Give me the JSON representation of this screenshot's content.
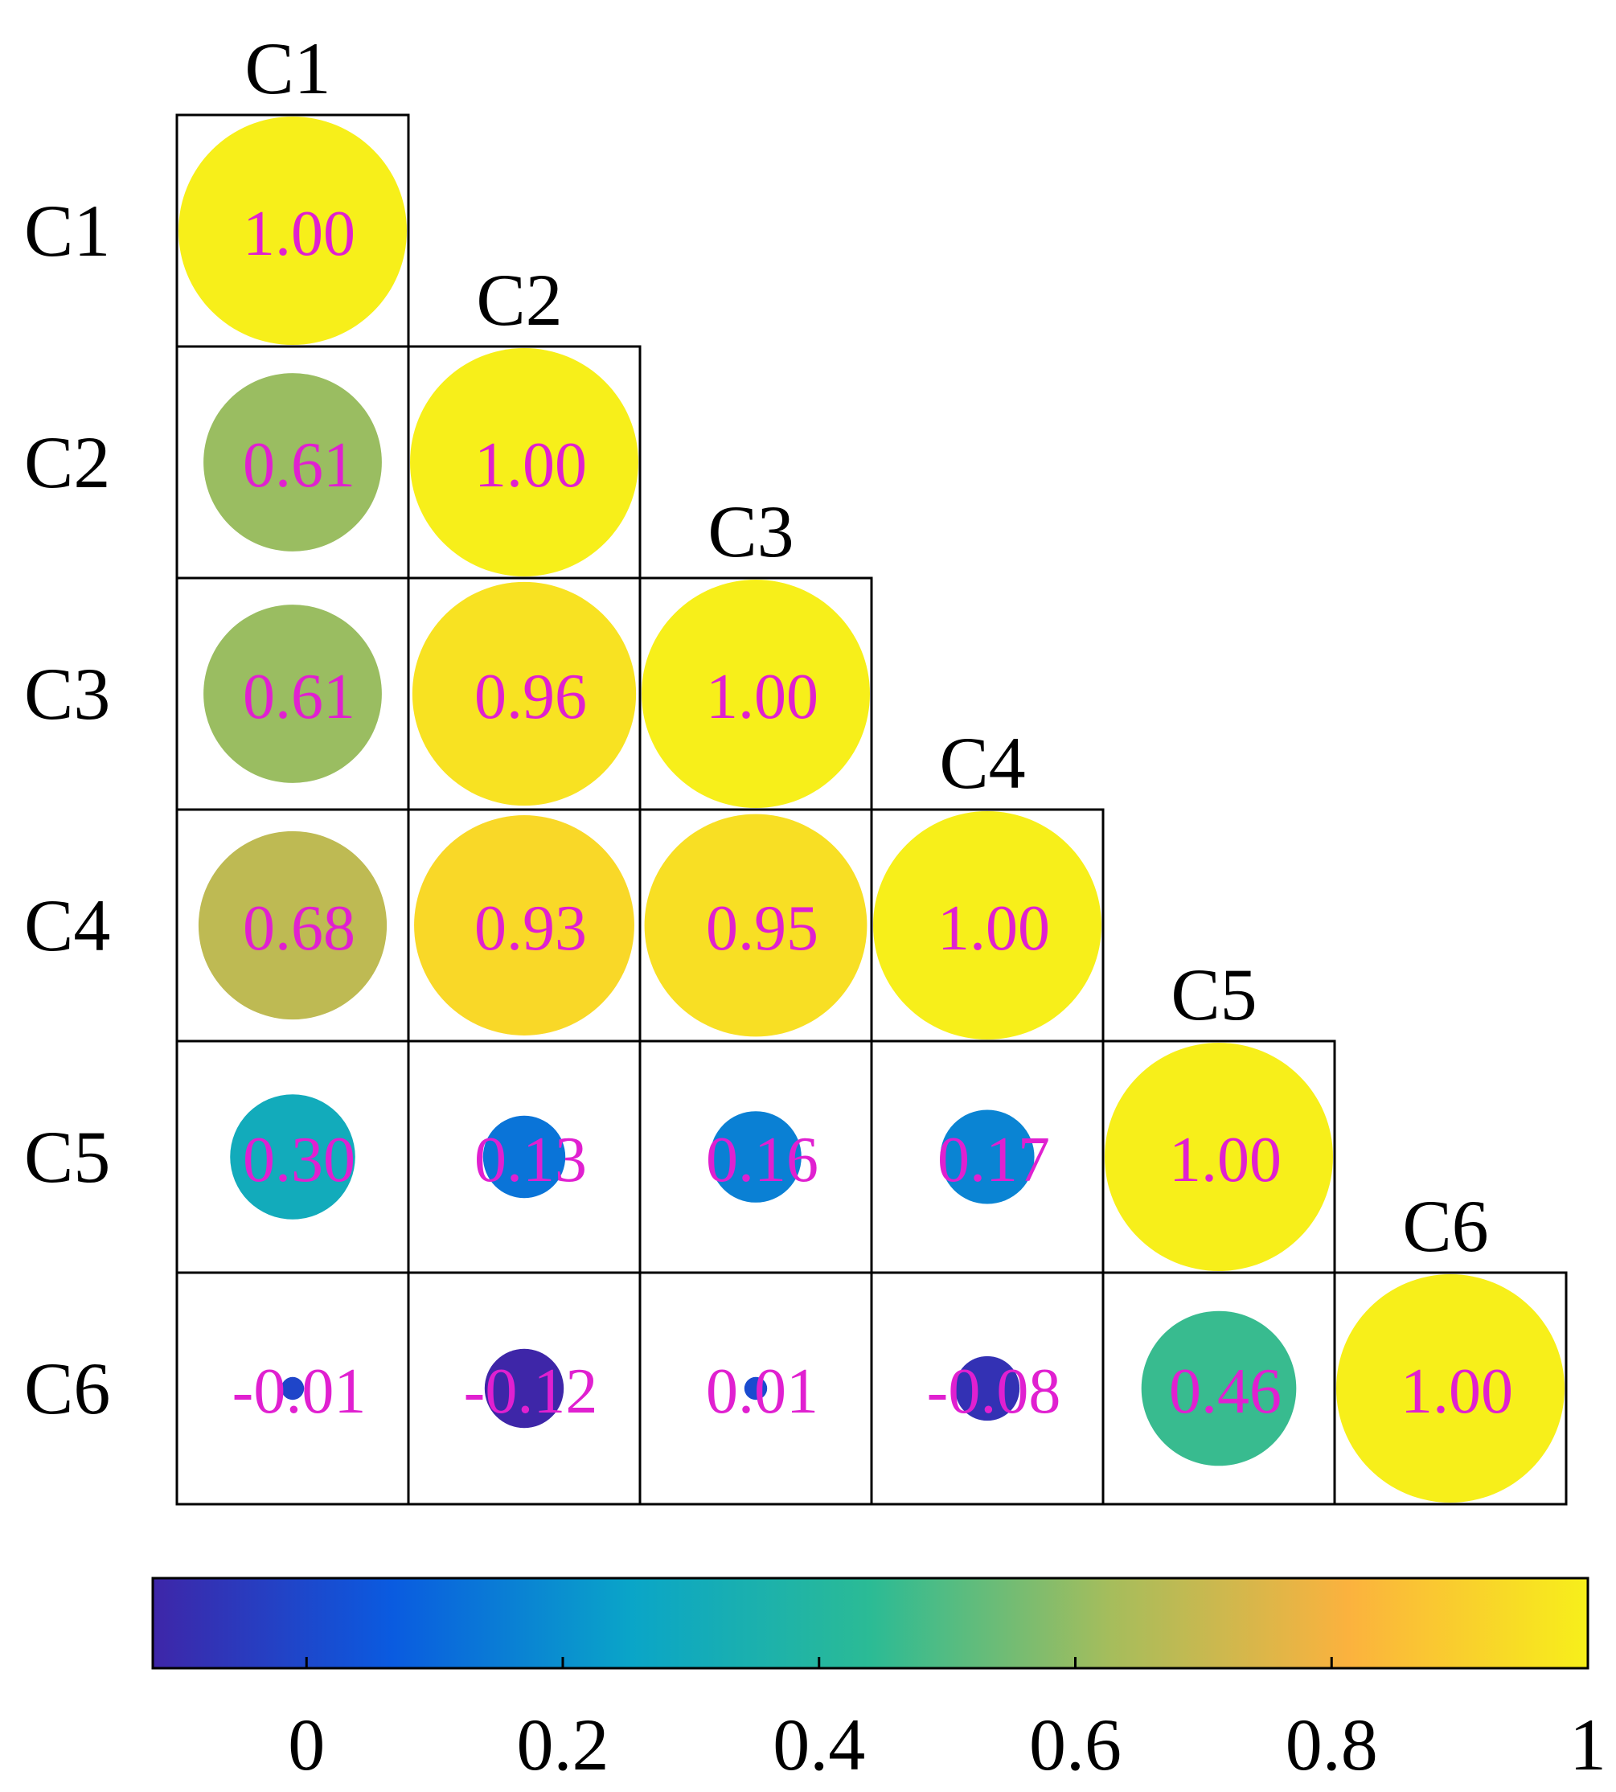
{
  "chart_data": {
    "type": "heatmap",
    "labels": [
      "C1",
      "C2",
      "C3",
      "C4",
      "C5",
      "C6"
    ],
    "matrix": [
      [
        1.0
      ],
      [
        0.61,
        1.0
      ],
      [
        0.61,
        0.96,
        1.0
      ],
      [
        0.68,
        0.93,
        0.95,
        1.0
      ],
      [
        0.3,
        0.13,
        0.16,
        0.17,
        1.0
      ],
      [
        -0.01,
        -0.12,
        0.01,
        -0.08,
        0.46,
        1.0
      ]
    ],
    "value_labels": [
      [
        "1.00"
      ],
      [
        "0.61",
        "1.00"
      ],
      [
        "0.61",
        "0.96",
        "1.00"
      ],
      [
        "0.68",
        "0.93",
        "0.95",
        "1.00"
      ],
      [
        "0.30",
        "0.13",
        "0.16",
        "0.17",
        "1.00"
      ],
      [
        "-0.01",
        "-0.12",
        "0.01",
        "-0.08",
        "0.46",
        "1.00"
      ]
    ],
    "colorbar": {
      "range": [
        -0.12,
        1.0
      ],
      "ticks": [
        0,
        0.2,
        0.4,
        0.6,
        0.8,
        1
      ],
      "tick_labels": [
        "0",
        "0.2",
        "0.4",
        "0.6",
        "0.8",
        "1"
      ],
      "orientation": "horizontal",
      "placement": "bottom"
    },
    "value_label_color": "#e020d0",
    "colormap": [
      "#3e26a8",
      "#0a5be0",
      "#0aa5c8",
      "#2bbb95",
      "#a5bd5c",
      "#fbb23e",
      "#f7ef1a"
    ],
    "title": "",
    "xlabel": "",
    "ylabel": ""
  }
}
